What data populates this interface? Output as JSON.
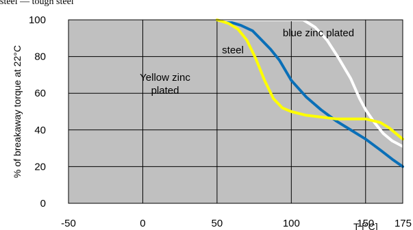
{
  "header_fragment": "steel — tough steel",
  "chart_data": {
    "type": "line",
    "title": "",
    "xlabel": "T [°C]",
    "ylabel": "% of breakaway torque at 22°C",
    "xlim": [
      -50,
      175
    ],
    "ylim": [
      0,
      100
    ],
    "x_ticks": [
      "-50",
      "0",
      "50",
      "100",
      "150",
      "175"
    ],
    "y_ticks": [
      "0",
      "20",
      "40",
      "60",
      "80",
      "100"
    ],
    "grid": true,
    "plot_background": "#c0c0c0",
    "series": [
      {
        "name": "steel",
        "label_lines": [
          "steel"
        ],
        "color": "#0a6fb7",
        "points": [
          [
            50,
            100
          ],
          [
            58,
            99
          ],
          [
            66,
            97
          ],
          [
            74,
            94
          ],
          [
            80,
            89
          ],
          [
            86,
            84
          ],
          [
            92,
            78
          ],
          [
            100,
            67
          ],
          [
            110,
            58
          ],
          [
            120,
            51
          ],
          [
            130,
            45
          ],
          [
            140,
            40
          ],
          [
            150,
            35
          ],
          [
            160,
            29
          ],
          [
            168,
            24
          ],
          [
            175,
            20
          ]
        ]
      },
      {
        "name": "blue zinc plated",
        "label_lines": [
          "blue zinc plated"
        ],
        "color": "#ffffff",
        "points": [
          [
            50,
            100
          ],
          [
            100,
            100
          ],
          [
            108,
            100
          ],
          [
            116,
            96
          ],
          [
            124,
            89
          ],
          [
            132,
            79
          ],
          [
            140,
            68
          ],
          [
            146,
            57
          ],
          [
            150,
            51
          ],
          [
            156,
            44
          ],
          [
            162,
            38
          ],
          [
            168,
            34
          ],
          [
            175,
            31
          ]
        ]
      },
      {
        "name": "Yellow zinc plated",
        "label_lines": [
          "Yellow zinc",
          "plated"
        ],
        "color": "#ffff00",
        "points": [
          [
            50,
            100
          ],
          [
            58,
            98
          ],
          [
            64,
            95
          ],
          [
            70,
            89
          ],
          [
            76,
            79
          ],
          [
            82,
            67
          ],
          [
            88,
            57
          ],
          [
            94,
            52
          ],
          [
            100,
            50
          ],
          [
            110,
            48
          ],
          [
            120,
            47
          ],
          [
            130,
            46
          ],
          [
            140,
            46
          ],
          [
            150,
            46
          ],
          [
            160,
            44
          ],
          [
            166,
            41
          ],
          [
            172,
            37
          ],
          [
            175,
            35
          ]
        ]
      }
    ]
  }
}
